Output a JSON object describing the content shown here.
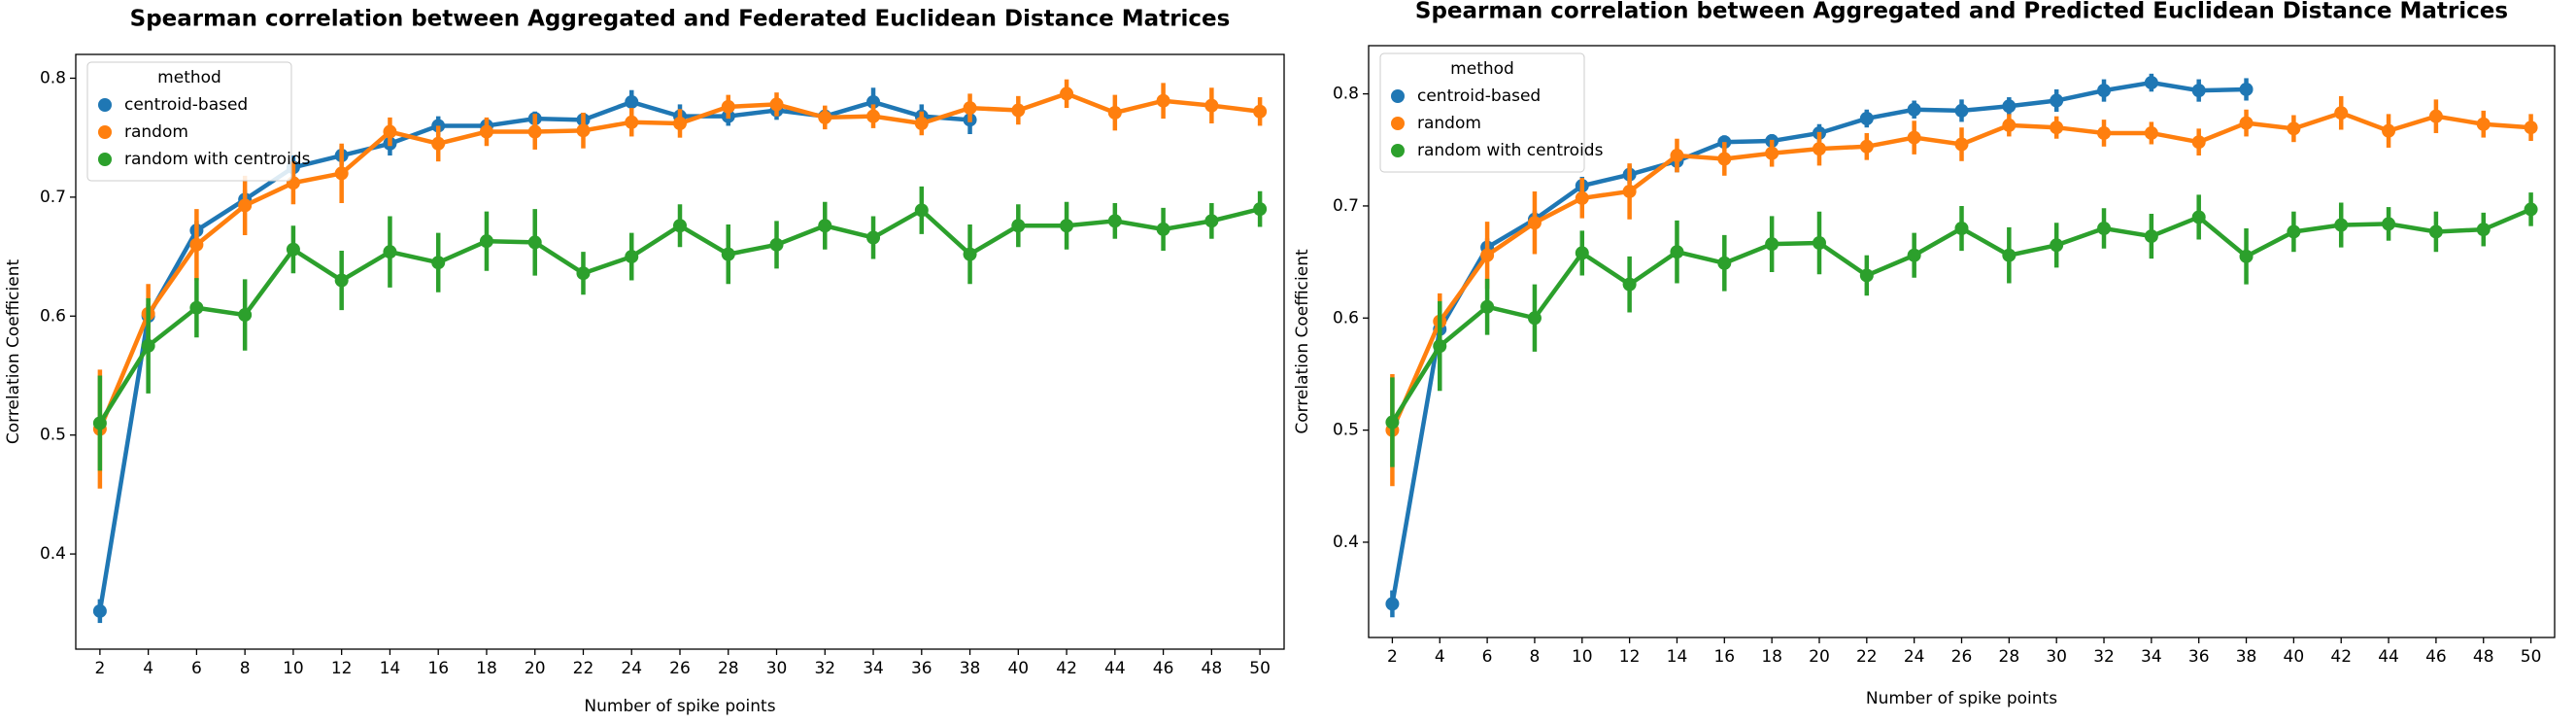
{
  "chart_data": [
    {
      "type": "pointplot",
      "title": "Spearman correlation between Aggregated and Federated Euclidean Distance Matrices",
      "x_label": "Number of spike points",
      "y_label": "Correlation Coefficient",
      "legend_title": "method",
      "legend": "upper left",
      "categories": [
        "2",
        "4",
        "6",
        "8",
        "10",
        "12",
        "14",
        "16",
        "18",
        "20",
        "22",
        "24",
        "26",
        "28",
        "30",
        "32",
        "34",
        "36",
        "38",
        "40",
        "42",
        "44",
        "46",
        "48",
        "50"
      ],
      "ylim": [
        0.32,
        0.82
      ],
      "yticks": [
        0.4,
        0.5,
        0.6,
        0.7,
        0.8
      ],
      "series": [
        {
          "name": "centroid-based",
          "color": "#1f77b4",
          "values": [
            0.352,
            0.6,
            0.672,
            0.698,
            0.725,
            0.735,
            0.745,
            0.76,
            0.76,
            0.766,
            0.765,
            0.78,
            0.768,
            0.768,
            0.773,
            0.768,
            0.78,
            0.768,
            0.765,
            null,
            null,
            null,
            null,
            null,
            null
          ],
          "errors": [
            0.01,
            0.01,
            0.008,
            0.008,
            0.01,
            0.008,
            0.01,
            0.008,
            0.006,
            0.006,
            0.006,
            0.01,
            0.01,
            0.008,
            0.008,
            0.008,
            0.012,
            0.01,
            0.012,
            null,
            null,
            null,
            null,
            null,
            null
          ]
        },
        {
          "name": "random",
          "color": "#ff7f0e",
          "values": [
            0.505,
            0.602,
            0.66,
            0.693,
            0.712,
            0.72,
            0.755,
            0.745,
            0.755,
            0.755,
            0.756,
            0.763,
            0.762,
            0.776,
            0.778,
            0.767,
            0.768,
            0.762,
            0.775,
            0.773,
            0.787,
            0.771,
            0.781,
            0.777,
            0.772
          ],
          "errors": [
            0.05,
            0.025,
            0.03,
            0.025,
            0.018,
            0.025,
            0.012,
            0.015,
            0.012,
            0.015,
            0.015,
            0.012,
            0.012,
            0.01,
            0.01,
            0.01,
            0.01,
            0.01,
            0.012,
            0.012,
            0.012,
            0.015,
            0.015,
            0.015,
            0.012
          ]
        },
        {
          "name": "random with centroids",
          "color": "#2ca02c",
          "values": [
            0.51,
            0.575,
            0.607,
            0.601,
            0.656,
            0.63,
            0.654,
            0.645,
            0.663,
            0.662,
            0.636,
            0.65,
            0.676,
            0.652,
            0.66,
            0.676,
            0.666,
            0.689,
            0.652,
            0.676,
            0.676,
            0.68,
            0.673,
            0.68,
            0.69
          ],
          "errors": [
            0.04,
            0.04,
            0.025,
            0.03,
            0.02,
            0.025,
            0.03,
            0.025,
            0.025,
            0.028,
            0.018,
            0.02,
            0.018,
            0.025,
            0.02,
            0.02,
            0.018,
            0.02,
            0.025,
            0.018,
            0.02,
            0.015,
            0.018,
            0.015,
            0.015
          ]
        }
      ]
    },
    {
      "type": "pointplot",
      "title": "Spearman correlation between Aggregated and Predicted Euclidean Distance Matrices",
      "x_label": "Number of spike points",
      "y_label": "Correlation Coefficient",
      "legend_title": "method",
      "legend": "upper left",
      "categories": [
        "2",
        "4",
        "6",
        "8",
        "10",
        "12",
        "14",
        "16",
        "18",
        "20",
        "22",
        "24",
        "26",
        "28",
        "30",
        "32",
        "34",
        "36",
        "38",
        "40",
        "42",
        "44",
        "46",
        "48",
        "50"
      ],
      "ylim": [
        0.315,
        0.843
      ],
      "yticks": [
        0.4,
        0.5,
        0.6,
        0.7,
        0.8
      ],
      "series": [
        {
          "name": "centroid-based",
          "color": "#1f77b4",
          "values": [
            0.345,
            0.59,
            0.663,
            0.688,
            0.718,
            0.728,
            0.74,
            0.757,
            0.758,
            0.765,
            0.778,
            0.786,
            0.785,
            0.789,
            0.794,
            0.803,
            0.81,
            0.803,
            0.804,
            null,
            null,
            null,
            null,
            null,
            null
          ],
          "errors": [
            0.012,
            0.01,
            0.008,
            0.008,
            0.008,
            0.008,
            0.01,
            0.006,
            0.006,
            0.008,
            0.008,
            0.008,
            0.01,
            0.008,
            0.01,
            0.01,
            0.008,
            0.01,
            0.01,
            null,
            null,
            null,
            null,
            null,
            null
          ]
        },
        {
          "name": "random",
          "color": "#ff7f0e",
          "values": [
            0.5,
            0.597,
            0.656,
            0.685,
            0.707,
            0.713,
            0.745,
            0.742,
            0.747,
            0.751,
            0.753,
            0.761,
            0.755,
            0.772,
            0.77,
            0.765,
            0.765,
            0.757,
            0.774,
            0.769,
            0.783,
            0.767,
            0.78,
            0.773,
            0.77
          ],
          "errors": [
            0.05,
            0.025,
            0.03,
            0.028,
            0.018,
            0.025,
            0.015,
            0.015,
            0.012,
            0.015,
            0.012,
            0.015,
            0.015,
            0.01,
            0.01,
            0.012,
            0.01,
            0.012,
            0.012,
            0.012,
            0.015,
            0.015,
            0.015,
            0.012,
            0.012
          ]
        },
        {
          "name": "random with centroids",
          "color": "#2ca02c",
          "values": [
            0.507,
            0.575,
            0.61,
            0.6,
            0.658,
            0.63,
            0.659,
            0.649,
            0.666,
            0.667,
            0.638,
            0.656,
            0.68,
            0.656,
            0.665,
            0.68,
            0.673,
            0.69,
            0.655,
            0.677,
            0.683,
            0.684,
            0.677,
            0.679,
            0.697
          ],
          "errors": [
            0.04,
            0.04,
            0.025,
            0.03,
            0.02,
            0.025,
            0.028,
            0.025,
            0.025,
            0.028,
            0.018,
            0.02,
            0.02,
            0.025,
            0.02,
            0.018,
            0.02,
            0.02,
            0.025,
            0.018,
            0.02,
            0.015,
            0.018,
            0.015,
            0.015
          ]
        }
      ]
    }
  ]
}
